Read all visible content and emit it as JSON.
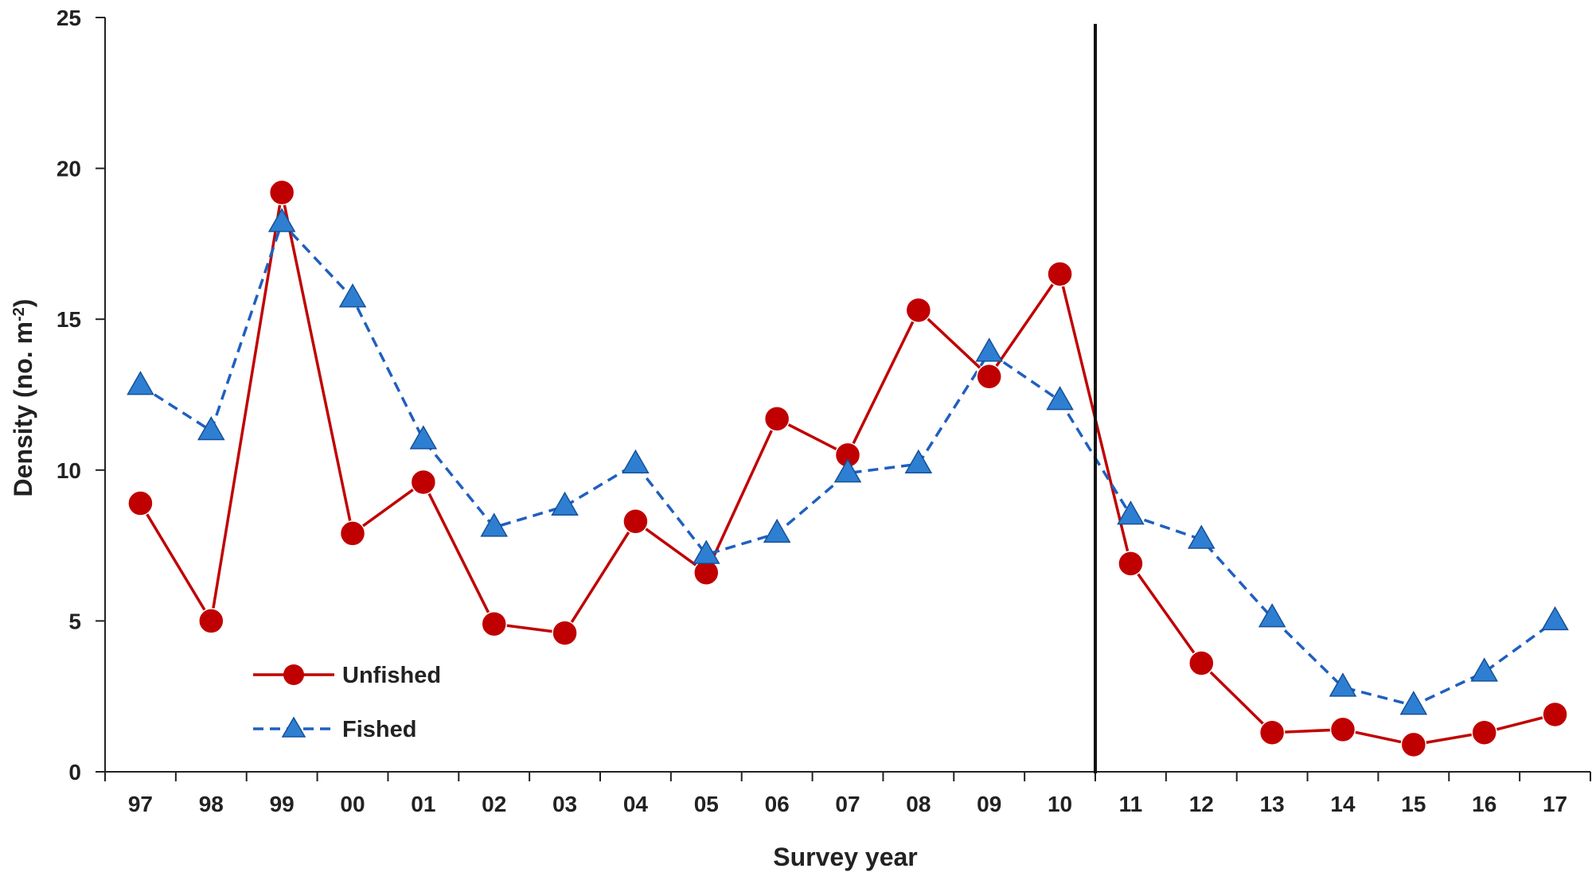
{
  "chart_data": {
    "type": "line",
    "title": "",
    "xlabel": "Survey year",
    "ylabel_main": "Density (no. m",
    "ylabel_sup": "-2",
    "ylabel_close": ")",
    "categories": [
      "97",
      "98",
      "99",
      "00",
      "01",
      "02",
      "03",
      "04",
      "05",
      "06",
      "07",
      "08",
      "09",
      "10",
      "11",
      "12",
      "13",
      "14",
      "15",
      "16",
      "17"
    ],
    "ylim": [
      0,
      25
    ],
    "yticks": [
      0,
      5,
      10,
      15,
      20,
      25
    ],
    "grid": false,
    "vertical_marker_after_category": "10",
    "legend_position": "lower-left",
    "series": [
      {
        "name": "Unfished",
        "color": "#c00000",
        "line_style": "solid",
        "marker": "circle",
        "values": [
          8.9,
          5.0,
          19.2,
          7.9,
          9.6,
          4.9,
          4.6,
          8.3,
          6.6,
          11.7,
          10.5,
          15.3,
          13.1,
          16.5,
          6.9,
          3.6,
          1.3,
          1.4,
          0.9,
          1.3,
          1.9
        ]
      },
      {
        "name": "Fished",
        "color": "#1f5fbf",
        "line_style": "dashed",
        "marker": "triangle",
        "values": [
          12.8,
          11.3,
          18.2,
          15.7,
          11.0,
          8.1,
          8.8,
          10.2,
          7.2,
          7.9,
          9.9,
          10.2,
          13.9,
          12.3,
          8.5,
          7.7,
          5.1,
          2.8,
          2.2,
          3.3,
          5.0
        ]
      }
    ]
  },
  "colors": {
    "axis": "#222222",
    "unfished": "#c00000",
    "fished": "#1f5fbf",
    "fished_marker_fill": "#2e7fd1"
  }
}
